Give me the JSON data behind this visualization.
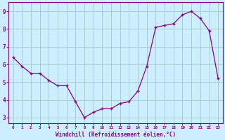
{
  "x": [
    0,
    1,
    2,
    3,
    4,
    5,
    6,
    7,
    8,
    9,
    10,
    11,
    12,
    13,
    14,
    15,
    16,
    17,
    18,
    19,
    20,
    21,
    22,
    23
  ],
  "y": [
    6.4,
    5.9,
    5.5,
    5.5,
    5.1,
    4.8,
    4.8,
    3.9,
    3.0,
    3.3,
    3.5,
    3.5,
    3.8,
    3.9,
    4.5,
    5.9,
    8.1,
    8.2,
    8.3,
    8.8,
    9.0,
    8.6,
    7.9,
    5.2
  ],
  "line_color": "#880088",
  "marker": "+",
  "bg_color": "#cceeff",
  "grid_color": "#aacccc",
  "xlabel": "Windchill (Refroidissement éolien,°C)",
  "ylabel_ticks": [
    3,
    4,
    5,
    6,
    7,
    8,
    9
  ],
  "xlim": [
    -0.5,
    23.5
  ],
  "ylim": [
    2.7,
    9.5
  ],
  "tick_color": "#880088",
  "spine_color": "#880088",
  "xlabel_fontsize": 5.5,
  "xtick_fontsize": 4.2,
  "ytick_fontsize": 5.5
}
